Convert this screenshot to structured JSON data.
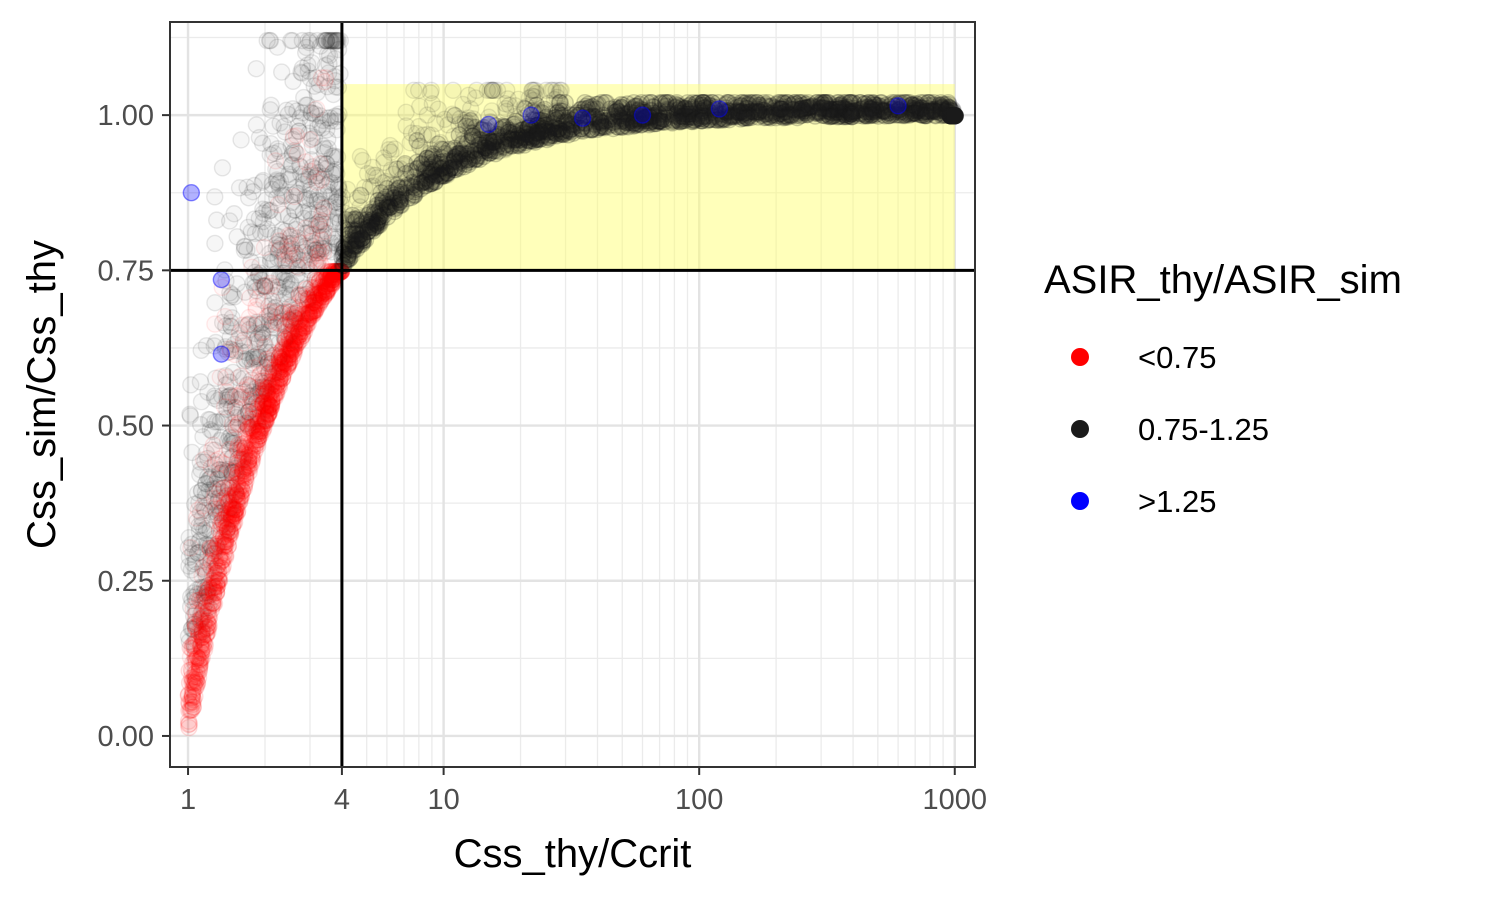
{
  "chart_data": {
    "type": "scatter",
    "title": "",
    "xlabel": "Css_thy/Ccrit",
    "ylabel": "Css_sim/Css_thy",
    "x_scale": "log10",
    "xlim": [
      0.85,
      1200
    ],
    "ylim": [
      -0.05,
      1.15
    ],
    "x_ticks": [
      1,
      4,
      10,
      100,
      1000
    ],
    "x_tick_labels": [
      "1",
      "4",
      "10",
      "100",
      "1000"
    ],
    "y_ticks": [
      0,
      0.25,
      0.5,
      0.75,
      1.0
    ],
    "y_tick_labels": [
      "0.00",
      "0.25",
      "0.50",
      "0.75",
      "1.00"
    ],
    "grid": true,
    "reference_lines": {
      "vertical_x": 4,
      "horizontal_y": 0.75
    },
    "highlight_region": {
      "x": [
        4,
        1000
      ],
      "y": [
        0.75,
        1.05
      ],
      "color": "#ffff66"
    },
    "legend": {
      "title": "ASIR_thy/ASIR_sim",
      "position": "right",
      "entries": [
        {
          "label": "<0.75",
          "color": "#ff0000"
        },
        {
          "label": "0.75-1.25",
          "color": "#1a1a1a"
        },
        {
          "label": ">1.25",
          "color": "#0000ff"
        }
      ]
    },
    "series": [
      {
        "name": "<0.75",
        "color": "#ff0000",
        "description": "dense band following Css_sim/Css_thy ≈ 1 - 1/x for x between 1 and 4",
        "x": [
          1.0,
          1.05,
          1.1,
          1.2,
          1.3,
          1.4,
          1.5,
          1.6,
          1.8,
          2.0,
          2.2,
          2.5,
          2.8,
          3.0,
          3.3,
          3.6,
          3.9
        ],
        "y": [
          0.02,
          0.06,
          0.1,
          0.17,
          0.23,
          0.28,
          0.33,
          0.37,
          0.44,
          0.5,
          0.54,
          0.6,
          0.64,
          0.67,
          0.7,
          0.72,
          0.74
        ]
      },
      {
        "name": "0.75-1.25",
        "color": "#1a1a1a",
        "description": "dense band following Css_sim/Css_thy ≈ 1 - 1/x for x between 4 and 1000, plus scattered cloud for x < 4",
        "x": [
          4,
          5,
          6,
          8,
          10,
          15,
          20,
          30,
          50,
          100,
          200,
          500,
          1000
        ],
        "y": [
          0.75,
          0.8,
          0.833,
          0.875,
          0.9,
          0.933,
          0.95,
          0.967,
          0.98,
          0.99,
          0.995,
          0.998,
          0.999
        ]
      },
      {
        "name": ">1.25",
        "color": "#0000ff",
        "description": "sparse outliers",
        "x": [
          1.03,
          1.35,
          1.35,
          15,
          22,
          35,
          60,
          120,
          600
        ],
        "y": [
          0.875,
          0.735,
          0.615,
          0.985,
          1.0,
          0.995,
          1.0,
          1.01,
          1.015
        ]
      }
    ]
  }
}
